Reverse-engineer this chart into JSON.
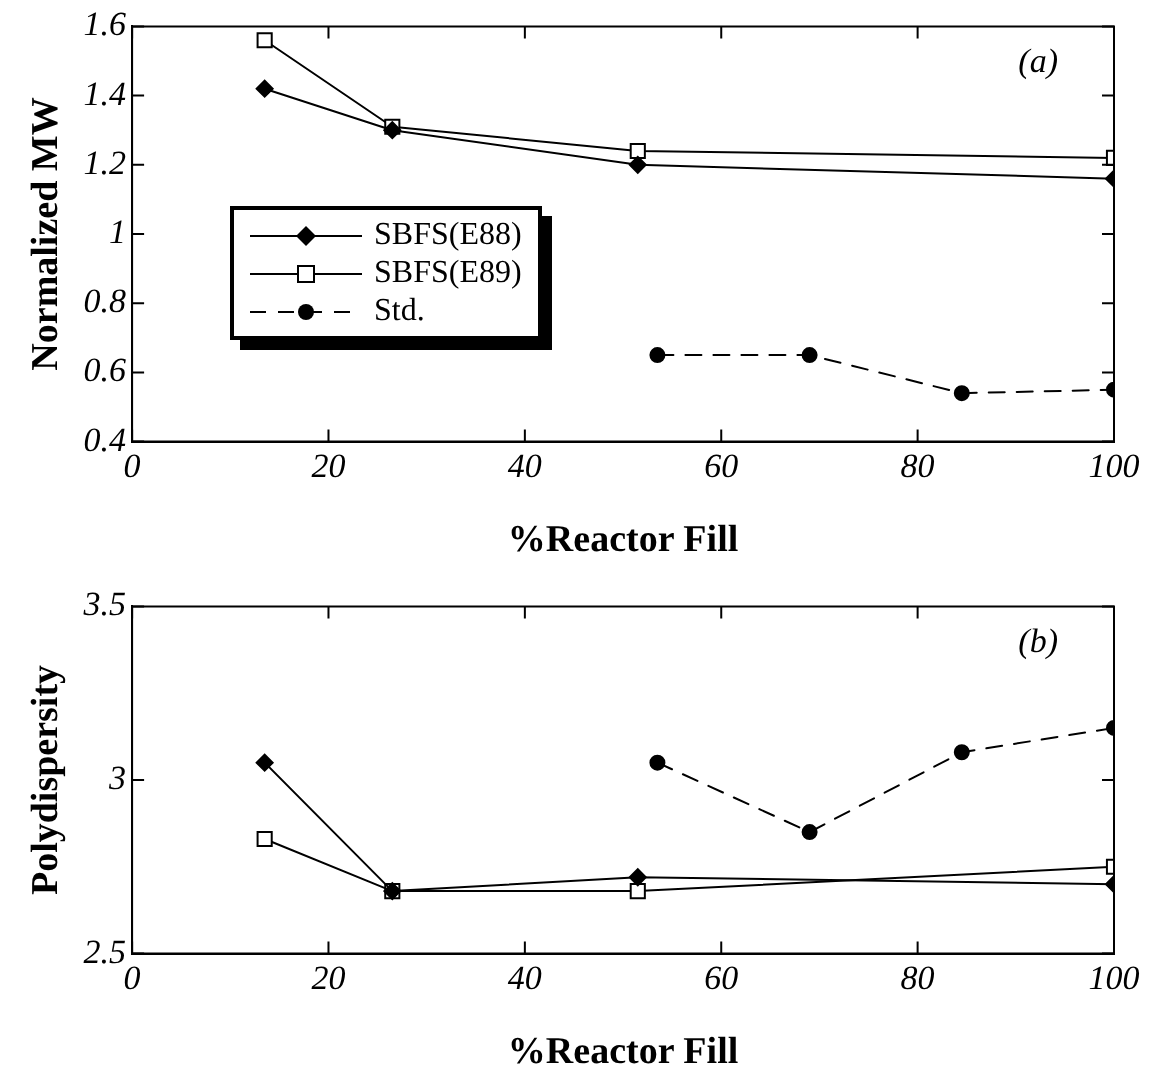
{
  "chart_data": [
    {
      "type": "line",
      "xlabel": "%Reactor Fill",
      "ylabel": "Normalized MW",
      "xlim": [
        0,
        100
      ],
      "xticks": [
        0,
        20,
        40,
        60,
        80,
        100
      ],
      "ylim": [
        0.4,
        1.6
      ],
      "yticks": [
        0.4,
        0.6,
        0.8,
        1,
        1.2,
        1.4,
        1.6
      ],
      "grid": false,
      "legend": "left",
      "annotations": [
        "(a)"
      ],
      "series": [
        {
          "name": "SBFS(E88)",
          "color": "#000000",
          "marker": "diamond",
          "line_style": "solid",
          "x": [
            13.5,
            26.5,
            51.5,
            100
          ],
          "values": [
            1.42,
            1.3,
            1.2,
            1.16
          ]
        },
        {
          "name": "SBFS(E89)",
          "color": "#000000",
          "marker": "square",
          "line_style": "solid",
          "x": [
            13.5,
            26.5,
            51.5,
            100
          ],
          "values": [
            1.56,
            1.31,
            1.24,
            1.22
          ]
        },
        {
          "name": "Std.",
          "color": "#000000",
          "marker": "circle",
          "line_style": "dashed",
          "x": [
            53.5,
            69,
            84.5,
            100
          ],
          "values": [
            0.65,
            0.65,
            0.54,
            0.55
          ]
        }
      ]
    },
    {
      "type": "line",
      "xlabel": "%Reactor Fill",
      "ylabel": "Polydispersity",
      "xlim": [
        0,
        100
      ],
      "xticks": [
        0,
        20,
        40,
        60,
        80,
        100
      ],
      "ylim": [
        2.5,
        3.5
      ],
      "yticks": [
        2.5,
        3,
        3.5
      ],
      "grid": false,
      "annotations": [
        "(b)"
      ],
      "series": [
        {
          "color": "#000000",
          "marker": "diamond",
          "line_style": "solid",
          "x": [
            13.5,
            26.5,
            51.5,
            100
          ],
          "values": [
            3.05,
            2.68,
            2.72,
            2.7
          ]
        },
        {
          "color": "#000000",
          "marker": "square",
          "line_style": "solid",
          "x": [
            13.5,
            26.5,
            51.5,
            100
          ],
          "values": [
            2.83,
            2.68,
            2.68,
            2.75
          ]
        },
        {
          "color": "#000000",
          "marker": "circle",
          "line_style": "dashed",
          "x": [
            53.5,
            69,
            84.5,
            100
          ],
          "values": [
            3.05,
            2.85,
            3.08,
            3.15
          ]
        }
      ]
    }
  ]
}
